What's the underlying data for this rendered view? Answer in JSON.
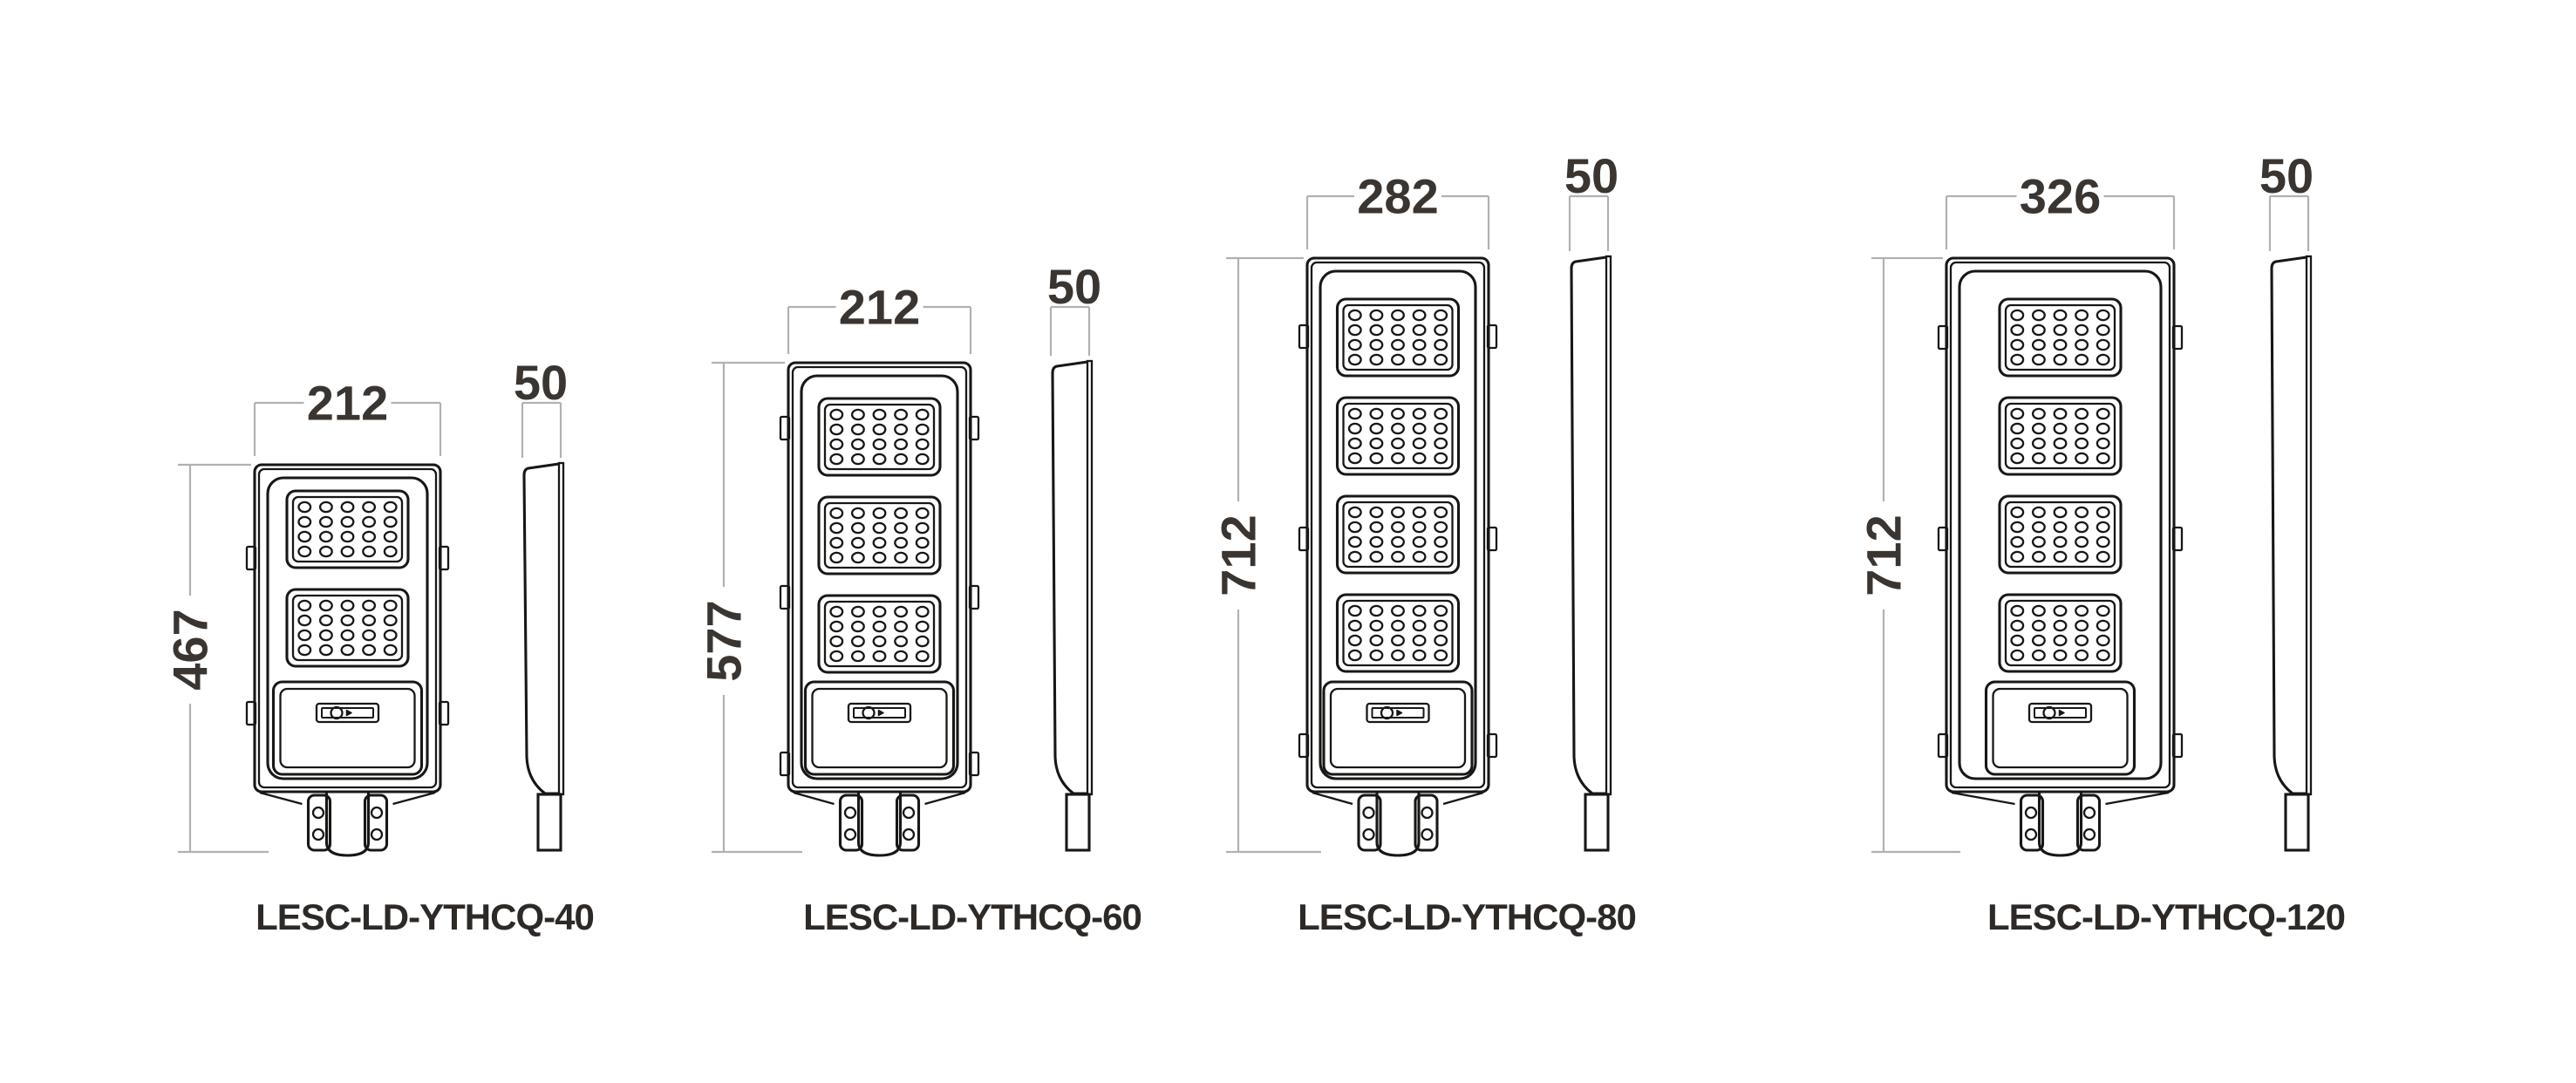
{
  "page": {
    "background": "#ffffff"
  },
  "colors": {
    "drawing_line": "#181715",
    "dimension_line": "#b3b1b0",
    "dimension_text": "#3b3531",
    "label_text": "#2d2926"
  },
  "products": [
    {
      "model": "LESC-LD-YTHCQ-40",
      "front_width_label": "212",
      "overall_height_label": "467",
      "depth_label": "50",
      "led_panel_count": 2,
      "led_grid": {
        "columns": 5,
        "rows": 4
      }
    },
    {
      "model": "LESC-LD-YTHCQ-60",
      "front_width_label": "212",
      "overall_height_label": "577",
      "depth_label": "50",
      "led_panel_count": 3,
      "led_grid": {
        "columns": 5,
        "rows": 4
      }
    },
    {
      "model": "LESC-LD-YTHCQ-80",
      "front_width_label": "282",
      "overall_height_label": "712",
      "depth_label": "50",
      "led_panel_count": 4,
      "led_grid": {
        "columns": 5,
        "rows": 4
      }
    },
    {
      "model": "LESC-LD-YTHCQ-120",
      "front_width_label": "326",
      "overall_height_label": "712",
      "depth_label": "50",
      "led_panel_count": 4,
      "led_grid": {
        "columns": 5,
        "rows": 4
      }
    }
  ]
}
